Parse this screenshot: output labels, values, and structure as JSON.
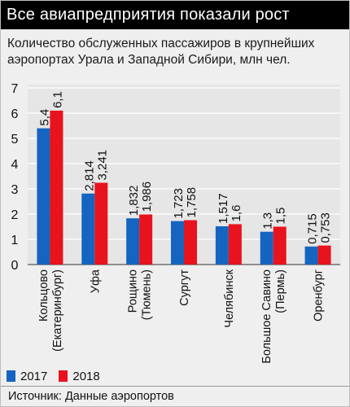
{
  "header": {
    "title": "Все авиапредприятия показали рост"
  },
  "subtitle": "Количество обслуженных пассажиров в крупнейших аэропортах Урала и Западной Сибири, млн чел.",
  "source": "Источник: Данные аэропортов",
  "colors": {
    "y2017": "#1565c0",
    "y2018": "#e8131c",
    "grid": "#ffffff",
    "plot_bg": "#e6e6e6"
  },
  "chart_data": {
    "type": "bar",
    "title": "",
    "xlabel": "",
    "ylabel": "",
    "ylim": [
      0,
      7
    ],
    "yticks": [
      0,
      1,
      2,
      3,
      4,
      5,
      6,
      7
    ],
    "grid": true,
    "legend_position": "bottom-left",
    "categories": [
      [
        "Кольцово",
        "(Екатеринбург)"
      ],
      [
        "Уфа"
      ],
      [
        "Рощино",
        "(Тюмень)"
      ],
      [
        "Сургут"
      ],
      [
        "Челябинск"
      ],
      [
        "Большое Савино",
        "(Пермь)"
      ],
      [
        "Оренбург"
      ]
    ],
    "series": [
      {
        "name": "2017",
        "values": [
          5.4,
          2.814,
          1.832,
          1.723,
          1.517,
          1.3,
          0.715
        ],
        "labels": [
          "5,4",
          "2,814",
          "1,832",
          "1,723",
          "1,517",
          "1,3",
          "0,715"
        ]
      },
      {
        "name": "2018",
        "values": [
          6.1,
          3.241,
          1.986,
          1.758,
          1.6,
          1.5,
          0.753
        ],
        "labels": [
          "6,1",
          "3,241",
          "1,986",
          "1,758",
          "1,6",
          "1,5",
          "0,753"
        ]
      }
    ]
  }
}
